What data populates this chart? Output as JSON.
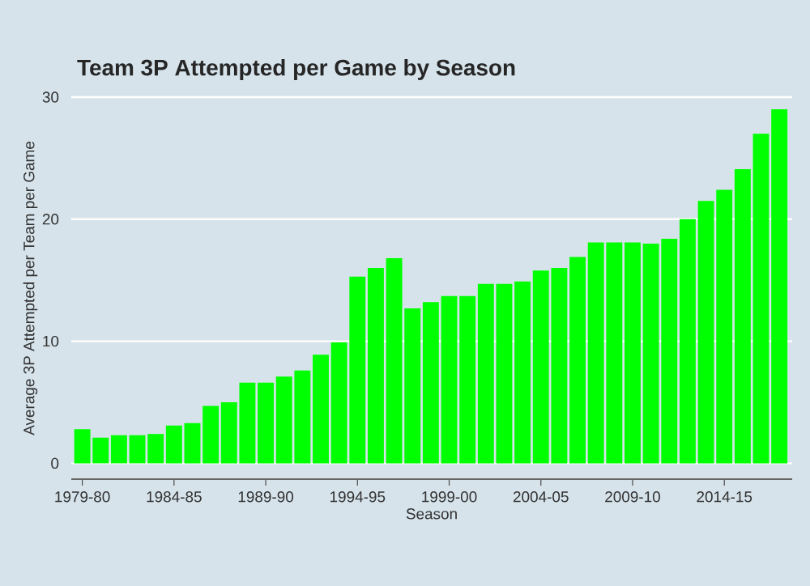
{
  "chart_data": {
    "type": "bar",
    "title": "Team 3P Attempted per Game by Season",
    "xlabel": "Season",
    "ylabel": "Average 3P Attempted per Team per Game",
    "categories": [
      "1979-80",
      null,
      null,
      null,
      null,
      "1984-85",
      null,
      null,
      null,
      null,
      "1989-90",
      null,
      null,
      null,
      null,
      "1994-95",
      null,
      null,
      null,
      null,
      "1999-00",
      null,
      null,
      null,
      null,
      "2004-05",
      null,
      null,
      null,
      null,
      "2009-10",
      null,
      null,
      null,
      null,
      "2014-15",
      null,
      null,
      null
    ],
    "values": [
      2.8,
      2.1,
      2.3,
      2.3,
      2.4,
      3.1,
      3.3,
      4.7,
      5.0,
      6.6,
      6.6,
      7.1,
      7.6,
      8.9,
      9.9,
      15.3,
      16.0,
      16.8,
      12.7,
      13.2,
      13.7,
      13.7,
      14.7,
      14.7,
      14.9,
      15.8,
      16.0,
      16.9,
      18.1,
      18.1,
      18.1,
      18.0,
      18.4,
      20.0,
      21.5,
      22.4,
      24.1,
      27.0,
      29.0
    ],
    "color": "#00ff00",
    "ylim": [
      -1.3,
      30
    ],
    "yticks": [
      0,
      10,
      20,
      30
    ],
    "grid": "y"
  }
}
